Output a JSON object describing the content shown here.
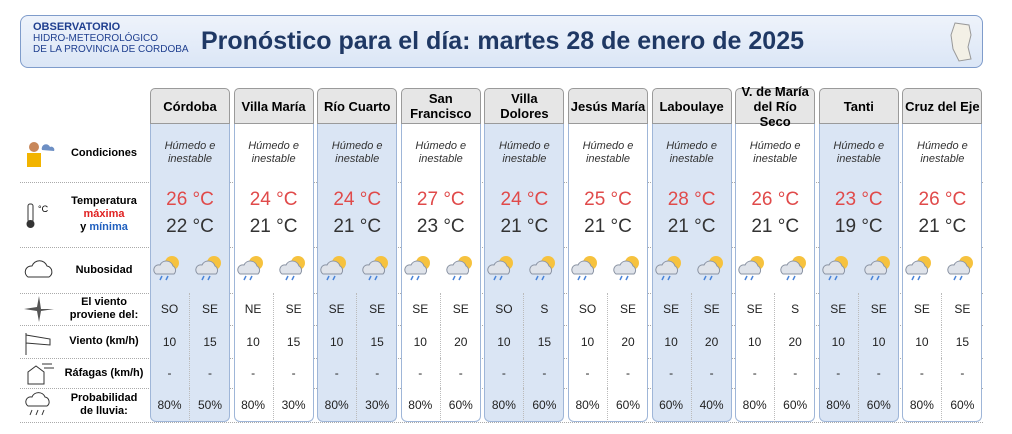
{
  "header": {
    "org": [
      "OBSERVATORIO",
      "HIDRO-METEOROLÓGICO",
      "DE LA PROVINCIA DE CORDOBA"
    ],
    "title": "Pronóstico para el día: martes 28 de enero de 2025"
  },
  "row_labels": {
    "conditions": "Condiciones",
    "temperature": [
      "Temperatura",
      "máxima",
      "y",
      "mínima"
    ],
    "cloudiness": "Nubosidad",
    "wind_from": "El viento proviene del:",
    "wind": "Viento (km/h)",
    "gusts": "Ráfagas (km/h)",
    "rain": "Probabilidad de lluvia:"
  },
  "cities": [
    {
      "name": "Córdoba",
      "conditions": "Húmedo e inestable",
      "max": "26 °C",
      "min": "22 °C",
      "wind_from": [
        "SO",
        "SE"
      ],
      "wind": [
        "10",
        "15"
      ],
      "gusts": [
        "-",
        "-"
      ],
      "rain": [
        "80%",
        "50%"
      ]
    },
    {
      "name": "Villa María",
      "conditions": "Húmedo e inestable",
      "max": "24 °C",
      "min": "21 °C",
      "wind_from": [
        "NE",
        "SE"
      ],
      "wind": [
        "10",
        "15"
      ],
      "gusts": [
        "-",
        "-"
      ],
      "rain": [
        "80%",
        "30%"
      ]
    },
    {
      "name": "Río Cuarto",
      "conditions": "Húmedo e inestable",
      "max": "24 °C",
      "min": "21 °C",
      "wind_from": [
        "SE",
        "SE"
      ],
      "wind": [
        "10",
        "15"
      ],
      "gusts": [
        "-",
        "-"
      ],
      "rain": [
        "80%",
        "30%"
      ]
    },
    {
      "name": "San Francisco",
      "conditions": "Húmedo e inestable",
      "max": "27 °C",
      "min": "23 °C",
      "wind_from": [
        "SE",
        "SE"
      ],
      "wind": [
        "10",
        "20"
      ],
      "gusts": [
        "-",
        "-"
      ],
      "rain": [
        "80%",
        "60%"
      ]
    },
    {
      "name": "Villa Dolores",
      "conditions": "Húmedo e inestable",
      "max": "24 °C",
      "min": "21 °C",
      "wind_from": [
        "SO",
        "S"
      ],
      "wind": [
        "10",
        "15"
      ],
      "gusts": [
        "-",
        "-"
      ],
      "rain": [
        "80%",
        "60%"
      ]
    },
    {
      "name": "Jesús María",
      "conditions": "Húmedo e inestable",
      "max": "25 °C",
      "min": "21 °C",
      "wind_from": [
        "SO",
        "SE"
      ],
      "wind": [
        "10",
        "20"
      ],
      "gusts": [
        "-",
        "-"
      ],
      "rain": [
        "80%",
        "60%"
      ]
    },
    {
      "name": "Laboulaye",
      "conditions": "Húmedo e inestable",
      "max": "28 °C",
      "min": "21 °C",
      "wind_from": [
        "SE",
        "SE"
      ],
      "wind": [
        "10",
        "20"
      ],
      "gusts": [
        "-",
        "-"
      ],
      "rain": [
        "60%",
        "40%"
      ]
    },
    {
      "name": "V. de María del Río Seco",
      "conditions": "Húmedo e inestable",
      "max": "26 °C",
      "min": "21 °C",
      "wind_from": [
        "SE",
        "S"
      ],
      "wind": [
        "10",
        "20"
      ],
      "gusts": [
        "-",
        "-"
      ],
      "rain": [
        "80%",
        "60%"
      ]
    },
    {
      "name": "Tanti",
      "conditions": "Húmedo e inestable",
      "max": "23 °C",
      "min": "19 °C",
      "wind_from": [
        "SE",
        "SE"
      ],
      "wind": [
        "10",
        "10"
      ],
      "gusts": [
        "-",
        "-"
      ],
      "rain": [
        "80%",
        "60%"
      ]
    },
    {
      "name": "Cruz del Eje",
      "conditions": "Húmedo e inestable",
      "max": "26 °C",
      "min": "21 °C",
      "wind_from": [
        "SE",
        "SE"
      ],
      "wind": [
        "10",
        "15"
      ],
      "gusts": [
        "-",
        "-"
      ],
      "rain": [
        "80%",
        "60%"
      ]
    }
  ]
}
